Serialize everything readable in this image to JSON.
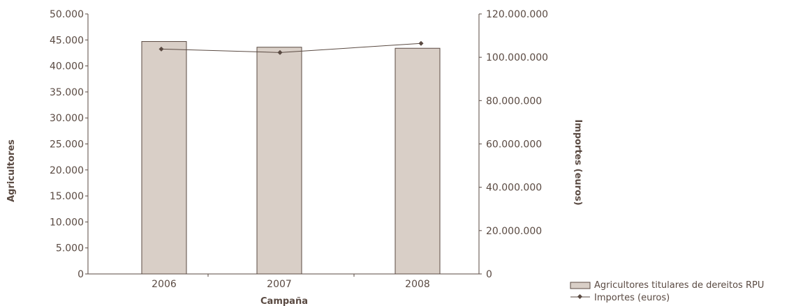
{
  "chart_data": {
    "type": "bar",
    "title": "",
    "xlabel": "Campaña",
    "ylabel": "Agricultores",
    "y2label": "Importes (euros)",
    "categories": [
      "2006",
      "2007",
      "2008"
    ],
    "ylim": [
      0,
      50000
    ],
    "y2lim": [
      0,
      120000000
    ],
    "yticks": [
      "0",
      "5.000",
      "10.000",
      "15.000",
      "20.000",
      "25.000",
      "30.000",
      "35.000",
      "40.000",
      "45.000",
      "50.000"
    ],
    "y2ticks": [
      "0",
      "20.000.000",
      "40.000.000",
      "60.000.000",
      "80.000.000",
      "100.000.000",
      "120.000.000"
    ],
    "series": [
      {
        "name": "Agricultores titulares de dereitos RPU",
        "type": "bar",
        "axis": "left",
        "values": [
          44700,
          43600,
          43400
        ]
      },
      {
        "name": "Importes (euros)",
        "type": "line",
        "axis": "right",
        "values": [
          103800000,
          102200000,
          106400000
        ]
      }
    ],
    "grid": false,
    "legend_position": "bottom-right",
    "colors": {
      "bar_fill": "#d9cfc7",
      "bar_stroke": "#5a4a42",
      "line": "#5a4a42",
      "axis": "#5a4a42",
      "text": "#5a4a42"
    }
  }
}
